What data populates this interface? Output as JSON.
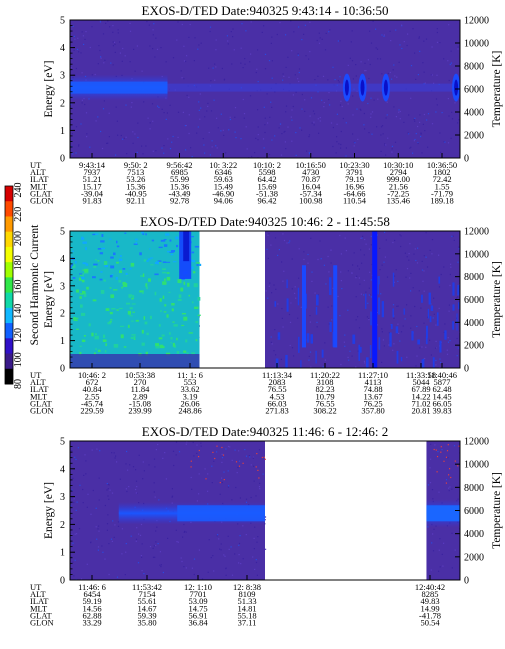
{
  "figure": {
    "colorbar": {
      "label": "Second Harmonic Current",
      "ticks": [
        "240",
        "220",
        "200",
        "180",
        "160",
        "140",
        "120",
        "100",
        "80"
      ]
    }
  },
  "chart_data": [
    {
      "type": "heatmap",
      "title": "EXOS-D/TED   Date:940325  9:43:14 - 10:36:50",
      "ylabel": "Energy [eV]",
      "y2label": "Temperature [K]",
      "ylim": [
        0,
        5
      ],
      "y2lim": [
        0,
        12000
      ],
      "y_ticks": [
        "0",
        "1",
        "2",
        "3",
        "4",
        "5"
      ],
      "y2_ticks": [
        "0",
        "2000",
        "4000",
        "6000",
        "8000",
        "10000",
        "12000"
      ],
      "data_spans": [
        [
          0,
          1
        ]
      ],
      "band": {
        "energy_eV": 2.55,
        "intensity": "high",
        "fade_start_fraction": 0.25
      },
      "hot_spots": [
        0.71,
        0.75,
        0.81,
        0.99
      ],
      "table": {
        "row_labels": [
          "UT",
          "ALT",
          "ILAT",
          "MLT",
          "GLAT",
          "GLON"
        ],
        "columns": [
          [
            "9:43:14",
            "7937",
            "51.21",
            "15.17",
            "-39.04",
            "91.83"
          ],
          [
            "9:50: 2",
            "7513",
            "53.26",
            "15.36",
            "-40.95",
            "92.11"
          ],
          [
            "9:56:42",
            "6985",
            "55.99",
            "15.36",
            "-43.49",
            "92.78"
          ],
          [
            "10: 3:22",
            "6346",
            "59.63",
            "15.49",
            "-46.90",
            "94.06"
          ],
          [
            "10:10: 2",
            "5598",
            "64.42",
            "15.69",
            "-51.38",
            "96.42"
          ],
          [
            "10:16:50",
            "4730",
            "70.87",
            "16.04",
            "-57.34",
            "100.98"
          ],
          [
            "10:23:30",
            "3791",
            "79.19",
            "16.96",
            "-64.66",
            "110.54"
          ],
          [
            "10:30:10",
            "2794",
            "999.00",
            "21.56",
            "-72.25",
            "135.46"
          ],
          [
            "10:36:50",
            "1802",
            "72.42",
            "1.55",
            "-71.79",
            "189.18"
          ]
        ]
      }
    },
    {
      "type": "heatmap",
      "title": "EXOS-D/TED   Date:940325  10:46: 2 - 11:45:58",
      "ylabel": "Energy [eV]",
      "y2label": "Temperature [K]",
      "ylim": [
        0,
        5
      ],
      "y2lim": [
        0,
        12000
      ],
      "y_ticks": [
        "0",
        "1",
        "2",
        "3",
        "4",
        "5"
      ],
      "y2_ticks": [
        "0",
        "2000",
        "4000",
        "6000",
        "8000",
        "10000",
        "12000"
      ],
      "data_spans": [
        [
          0,
          0.332
        ],
        [
          0.5,
          1
        ]
      ],
      "band": {
        "energy_eV": 2.5,
        "intensity": "very-high",
        "fade_start_fraction": 0.33
      },
      "hot_spots": [
        0.28,
        0.6,
        0.68,
        0.78
      ],
      "table": {
        "row_labels": [
          "UT",
          "ALT",
          "ILAT",
          "MLT",
          "GLAT",
          "GLON"
        ],
        "columns": [
          [
            "10:46: 2",
            "672",
            "40.84",
            "2.55",
            "-45.74",
            "229.59"
          ],
          [
            "10:53:38",
            "270",
            "11.84",
            "2.89",
            "-15.08",
            "239.99"
          ],
          [
            "11: 1: 6",
            "553",
            "33.62",
            "3.19",
            "26.06",
            "248.86"
          ],
          [
            "11:13:34",
            "2083",
            "76.55",
            "4.53",
            "66.03",
            "271.83"
          ],
          [
            "11:20:22",
            "3108",
            "82.23",
            "10.79",
            "76.55",
            "308.22"
          ],
          [
            "11:27:10",
            "4113",
            "74.88",
            "13.67",
            "76.25",
            "357.80"
          ],
          [
            "11:33:58",
            "5044",
            "67.89",
            "14.22",
            "71.02",
            "20.81"
          ],
          [
            "11:40:46",
            "5877",
            "62.48",
            "14.45",
            "66.05",
            "39.83"
          ]
        ]
      }
    },
    {
      "type": "heatmap",
      "title": "EXOS-D/TED   Date:940325  11:46: 6 - 12:46: 2",
      "ylabel": "Energy [eV]",
      "y2label": "Temperature [K]",
      "ylim": [
        0,
        5
      ],
      "y2lim": [
        0,
        12000
      ],
      "y_ticks": [
        "0",
        "1",
        "2",
        "3",
        "4",
        "5"
      ],
      "y2_ticks": [
        "0",
        "2000",
        "4000",
        "6000",
        "8000",
        "10000",
        "12000"
      ],
      "data_spans": [
        [
          0,
          0.5
        ],
        [
          0.914,
          1
        ]
      ],
      "band": {
        "energy_eV": 2.4,
        "intensity": "high",
        "fade_start_fraction": 0.1
      },
      "hot_spots": [],
      "table": {
        "row_labels": [
          "UT",
          "ALT",
          "ILAT",
          "MLT",
          "GLAT",
          "GLON"
        ],
        "columns": [
          [
            "11:46: 6",
            "6454",
            "59.19",
            "14.56",
            "62.88",
            "33.29"
          ],
          [
            "11:53:42",
            "7154",
            "55.61",
            "14.67",
            "59.39",
            "35.80"
          ],
          [
            "12: 1:10",
            "7701",
            "53.09",
            "14.75",
            "56.91",
            "36.84"
          ],
          [
            "12: 8:38",
            "8109",
            "51.33",
            "14.81",
            "55.18",
            "37.11"
          ],
          [
            "12:40:42",
            "8285",
            "49.83",
            "14.99",
            "-41.78",
            "50.54"
          ]
        ]
      }
    }
  ]
}
